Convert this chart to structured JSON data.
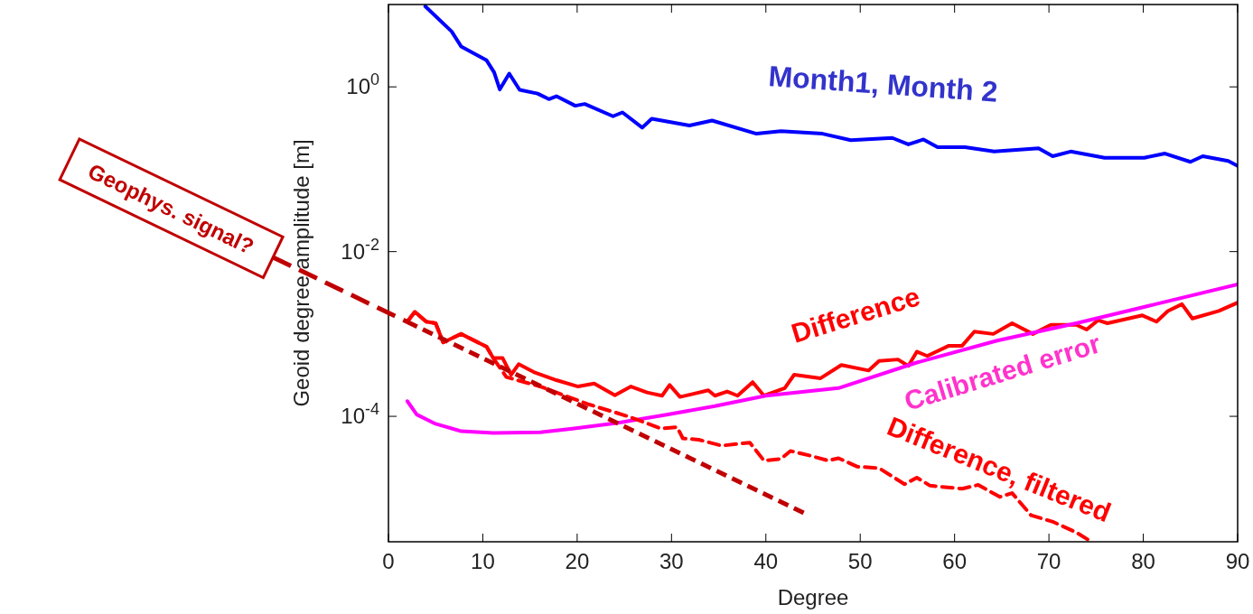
{
  "chart_data": {
    "type": "line",
    "xlabel": "Degree",
    "ylabel": "Geoid degree amplitude [m]",
    "log": "y",
    "grid": false,
    "xlim": [
      0,
      90
    ],
    "xticks": [
      0,
      10,
      20,
      30,
      40,
      50,
      60,
      70,
      80,
      90
    ],
    "ylim": [
      3e-06,
      10
    ],
    "yticks": [
      {
        "value": 1,
        "label": "10$^{0}$"
      },
      {
        "value": 0.01,
        "label": "10$^{-2}$"
      },
      {
        "value": 0.0001,
        "label": "10$^{-4}$"
      }
    ],
    "series": [
      {
        "name": "Month1, Month 2",
        "color": "#0000ff",
        "line_style": "solid",
        "x": [
          3.9,
          6.7,
          7.7,
          10.4,
          11.2,
          11.8,
          12.8,
          13.9,
          15.8,
          17,
          17.8,
          19.8,
          20.8,
          23.8,
          24.8,
          26.9,
          27.9,
          31.9,
          34.3,
          39,
          41.6,
          46,
          49,
          53.4,
          55.1,
          56.7,
          58.2,
          61.1,
          64.2,
          68.9,
          70.4,
          72.3,
          75.9,
          80.1,
          82.3,
          85,
          86.3,
          89,
          90
        ],
        "values": [
          9.5,
          4.7,
          3.1,
          2.1,
          1.5,
          0.93,
          1.45,
          0.92,
          0.83,
          0.71,
          0.77,
          0.59,
          0.62,
          0.44,
          0.49,
          0.32,
          0.41,
          0.34,
          0.39,
          0.27,
          0.29,
          0.27,
          0.225,
          0.24,
          0.2,
          0.23,
          0.185,
          0.185,
          0.164,
          0.18,
          0.144,
          0.164,
          0.138,
          0.138,
          0.155,
          0.123,
          0.144,
          0.126,
          0.11
        ]
      },
      {
        "name": "Difference",
        "color": "#ff0000",
        "line_style": "solid",
        "x": [
          2,
          2.8,
          4,
          5,
          5.8,
          7.7,
          10.4,
          11.1,
          12.1,
          13,
          13.8,
          15.4,
          17.8,
          20.1,
          21.8,
          24,
          25.7,
          27.4,
          29,
          29.8,
          30.9,
          33.9,
          34.6,
          35.9,
          37,
          38.6,
          39.8,
          42,
          43,
          45.8,
          48,
          50.9,
          52,
          54,
          55.1,
          56,
          57.1,
          59.4,
          60.8,
          62.1,
          64.1,
          66.1,
          68.3,
          70.2,
          72.9,
          74,
          75.2,
          76.2,
          79.9,
          81.4,
          82.6,
          84.1,
          85.2,
          88,
          90
        ],
        "values": [
          0.00141,
          0.00186,
          0.00141,
          0.00135,
          0.00079,
          0.001,
          0.0007,
          0.00051,
          0.00051,
          0.00032,
          0.00043,
          0.000345,
          0.000275,
          0.00023,
          0.00025,
          0.00018,
          0.00023,
          0.000195,
          0.000178,
          0.00024,
          0.000172,
          0.000207,
          0.000178,
          0.0002,
          0.000178,
          0.00026,
          0.000178,
          0.00022,
          0.00032,
          0.00029,
          0.00042,
          0.00036,
          0.00047,
          0.00049,
          0.00041,
          0.00061,
          0.00054,
          0.00072,
          0.00072,
          0.00107,
          0.001,
          0.00135,
          0.001,
          0.00129,
          0.00129,
          0.00113,
          0.00147,
          0.00135,
          0.00168,
          0.00141,
          0.0019,
          0.0023,
          0.00154,
          0.0019,
          0.0024
        ]
      },
      {
        "name": "Calibrated error",
        "color": "#ff00ff",
        "line_style": "solid",
        "x": [
          2,
          3,
          5,
          7.7,
          11.1,
          16.1,
          19.5,
          24.2,
          29.5,
          34.6,
          40,
          47.7,
          56,
          64.5,
          72.9,
          81.3,
          90
        ],
        "values": [
          0.000153,
          0.000105,
          8.1e-05,
          6.6e-05,
          6.3e-05,
          6.4e-05,
          7.1e-05,
          8.3e-05,
          0.000105,
          0.000133,
          0.000178,
          0.00022,
          0.00045,
          0.00083,
          0.00135,
          0.0023,
          0.004
        ]
      },
      {
        "name": "Difference, filtered",
        "color": "#ff0000",
        "line_style": "dashed",
        "x": [
          2,
          2.8,
          4,
          5,
          5.8,
          7.7,
          10.4,
          11.1,
          12.5,
          16.1,
          21.2,
          25.5,
          28.9,
          30.6,
          31.2,
          32.9,
          35.3,
          38.3,
          39.8,
          41.6,
          42.6,
          44.6,
          46.6,
          47.7,
          49.7,
          52,
          54.7,
          56,
          57.4,
          60.8,
          62.5,
          64.8,
          66.1,
          68.1,
          70.5,
          72.9,
          74.5
        ],
        "values": [
          0.00141,
          0.00186,
          0.00141,
          0.00135,
          0.00079,
          0.001,
          0.0007,
          0.00051,
          0.0003,
          0.00023,
          0.00014,
          9.9e-05,
          7.1e-05,
          7.4e-05,
          5.4e-05,
          5.2e-05,
          4.4e-05,
          4.8e-05,
          2.9e-05,
          3.05e-05,
          3.8e-05,
          3.35e-05,
          2.9e-05,
          3.1e-05,
          2.45e-05,
          2.35e-05,
          1.5e-05,
          1.8e-05,
          1.44e-05,
          1.32e-05,
          1.47e-05,
          1.05e-05,
          1.17e-05,
          6.3e-06,
          5.2e-06,
          3.9e-06,
          3e-06
        ]
      },
      {
        "name": "Geophys. signal?",
        "color": "#c00000",
        "line_style": "dashed",
        "x": [
          2,
          44.3
        ],
        "values": [
          0.0014,
          6.5e-06
        ]
      }
    ]
  }
}
